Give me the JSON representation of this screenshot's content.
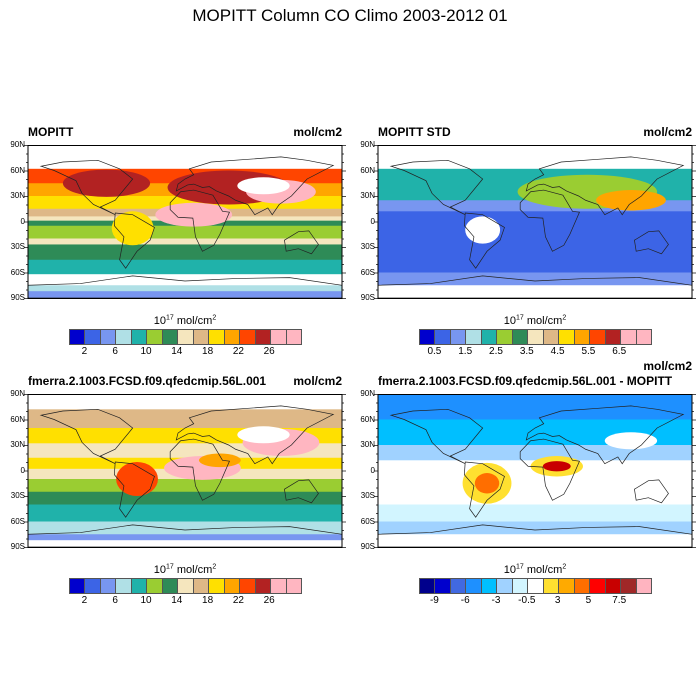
{
  "title": "MOPITT Column CO Climo 2003-2012 01",
  "lat_labels": [
    "90N",
    "60N",
    "30N",
    "0",
    "30S",
    "60S",
    "90S"
  ],
  "units": {
    "base": "10",
    "exp": "17",
    "mid": " mol/cm",
    "exp2": "2"
  },
  "panels": [
    {
      "left_title": "MOPITT",
      "right_title": "mol/cm2",
      "colorbar": {
        "colors": [
          "#0000CD",
          "#3C64E6",
          "#7896F0",
          "#B0E0E6",
          "#20B2AA",
          "#9ACD32",
          "#2E8B57",
          "#F5E6BE",
          "#DEB887",
          "#FFE000",
          "#FFA500",
          "#FF4500",
          "#B22222",
          "#FFB6C1",
          "#FFB6C1"
        ],
        "labels": [
          "2",
          "6",
          "10",
          "14",
          "18",
          "22",
          "26"
        ]
      }
    },
    {
      "left_title": "MOPITT STD",
      "right_title": "mol/cm2",
      "colorbar": {
        "colors": [
          "#0000CD",
          "#3C64E6",
          "#7896F0",
          "#B0E0E6",
          "#20B2AA",
          "#9ACD32",
          "#2E8B57",
          "#F5E6BE",
          "#DEB887",
          "#FFE000",
          "#FFA500",
          "#FF4500",
          "#B22222",
          "#FFB6C1",
          "#FFB6C1"
        ],
        "labels": [
          "0.5",
          "1.5",
          "2.5",
          "3.5",
          "4.5",
          "5.5",
          "6.5"
        ]
      }
    },
    {
      "left_title": "fmerra.2.1003.FCSD.f09.qfedcmip.56L.001",
      "right_title": "mol/cm2",
      "colorbar": {
        "colors": [
          "#0000CD",
          "#3C64E6",
          "#7896F0",
          "#B0E0E6",
          "#20B2AA",
          "#9ACD32",
          "#2E8B57",
          "#F5E6BE",
          "#DEB887",
          "#FFE000",
          "#FFA500",
          "#FF4500",
          "#B22222",
          "#FFB6C1",
          "#FFB6C1"
        ],
        "labels": [
          "2",
          "6",
          "10",
          "14",
          "18",
          "22",
          "26"
        ]
      }
    },
    {
      "left_title": "fmerra.2.1003.FCSD.f09.qfedcmip.56L.001 - MOPITT",
      "right_title": "mol/cm2",
      "colorbar": {
        "colors": [
          "#00008C",
          "#0000CD",
          "#4169E1",
          "#1E90FF",
          "#00BFFF",
          "#A0D2FF",
          "#D2F5FF",
          "#FFFFFF",
          "#FFE030",
          "#FFAA00",
          "#FF6E00",
          "#FF0000",
          "#C80000",
          "#A02828",
          "#FFB4C0"
        ],
        "labels": [
          "-9",
          "-6",
          "-3",
          "-0.5",
          "3",
          "5",
          "7.5"
        ]
      }
    }
  ]
}
